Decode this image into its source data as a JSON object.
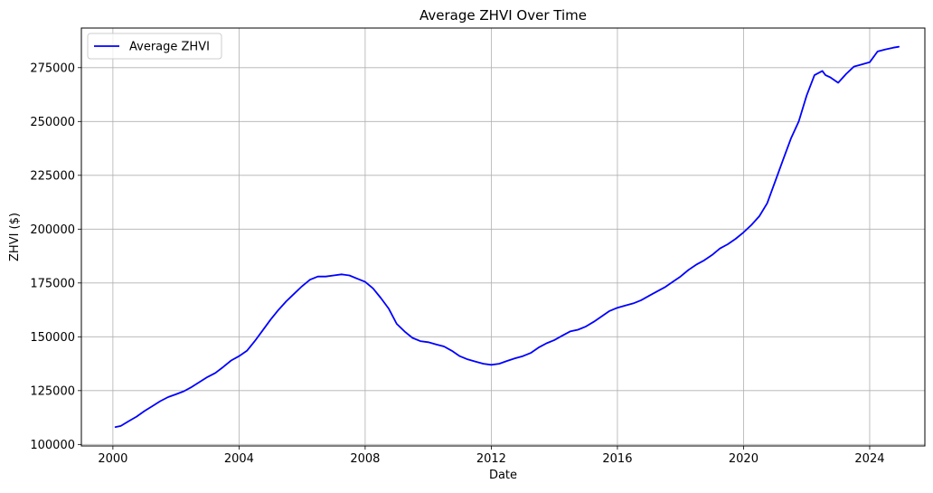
{
  "chart_data": {
    "type": "line",
    "title": "Average ZHVI Over Time",
    "xlabel": "Date",
    "ylabel": "ZHVI ($)",
    "xlim": [
      1999.0,
      2025.75
    ],
    "ylim": [
      99300,
      293400
    ],
    "x_ticks": [
      2000,
      2004,
      2008,
      2012,
      2016,
      2020,
      2024
    ],
    "x_tick_labels": [
      "2000",
      "2004",
      "2008",
      "2012",
      "2016",
      "2020",
      "2024"
    ],
    "y_ticks": [
      100000,
      125000,
      150000,
      175000,
      200000,
      225000,
      250000,
      275000
    ],
    "y_tick_labels": [
      "100000",
      "125000",
      "150000",
      "175000",
      "200000",
      "225000",
      "250000",
      "275000"
    ],
    "grid": true,
    "legend_position": "top-left",
    "series": [
      {
        "name": "Average ZHVI",
        "color": "#0000ff",
        "x": [
          2000.08,
          2000.25,
          2000.5,
          2000.75,
          2001.0,
          2001.25,
          2001.5,
          2001.75,
          2002.0,
          2002.25,
          2002.5,
          2002.75,
          2003.0,
          2003.25,
          2003.5,
          2003.75,
          2004.0,
          2004.25,
          2004.5,
          2004.75,
          2005.0,
          2005.25,
          2005.5,
          2005.75,
          2006.0,
          2006.25,
          2006.5,
          2006.75,
          2007.0,
          2007.25,
          2007.5,
          2007.75,
          2008.0,
          2008.25,
          2008.5,
          2008.75,
          2009.0,
          2009.25,
          2009.5,
          2009.75,
          2010.0,
          2010.25,
          2010.5,
          2010.75,
          2011.0,
          2011.25,
          2011.5,
          2011.75,
          2012.0,
          2012.25,
          2012.5,
          2012.75,
          2013.0,
          2013.25,
          2013.5,
          2013.75,
          2014.0,
          2014.25,
          2014.5,
          2014.75,
          2015.0,
          2015.25,
          2015.5,
          2015.75,
          2016.0,
          2016.25,
          2016.5,
          2016.75,
          2017.0,
          2017.25,
          2017.5,
          2017.75,
          2018.0,
          2018.25,
          2018.5,
          2018.75,
          2019.0,
          2019.25,
          2019.5,
          2019.75,
          2020.0,
          2020.25,
          2020.5,
          2020.75,
          2021.0,
          2021.25,
          2021.5,
          2021.75,
          2022.0,
          2022.25,
          2022.5,
          2022.6,
          2022.75,
          2023.0,
          2023.25,
          2023.5,
          2023.75,
          2024.0,
          2024.25,
          2024.5,
          2024.75,
          2024.92
        ],
        "values": [
          108100,
          108600,
          110800,
          112900,
          115500,
          117800,
          120100,
          122000,
          123300,
          124700,
          126700,
          129000,
          131300,
          133200,
          136000,
          139000,
          141000,
          143500,
          148000,
          153000,
          158000,
          162500,
          166500,
          170000,
          173500,
          176500,
          178000,
          178000,
          178500,
          179000,
          178500,
          177000,
          175500,
          172500,
          168000,
          163000,
          156000,
          152500,
          149500,
          148000,
          147500,
          146500,
          145500,
          143500,
          141000,
          139500,
          138500,
          137500,
          137000,
          137500,
          138800,
          140000,
          141000,
          142500,
          145000,
          147000,
          148500,
          150500,
          152500,
          153300,
          154800,
          157000,
          159500,
          162000,
          163500,
          164500,
          165500,
          167000,
          169000,
          171000,
          173000,
          175500,
          178000,
          181000,
          183500,
          185500,
          188000,
          191000,
          193000,
          195500,
          198500,
          202000,
          206000,
          212000,
          222000,
          232000,
          242000,
          250000,
          262000,
          271500,
          273500,
          271500,
          270500,
          268000,
          272000,
          275500,
          276500,
          277500,
          282500,
          283500,
          284300,
          284700
        ]
      }
    ]
  }
}
